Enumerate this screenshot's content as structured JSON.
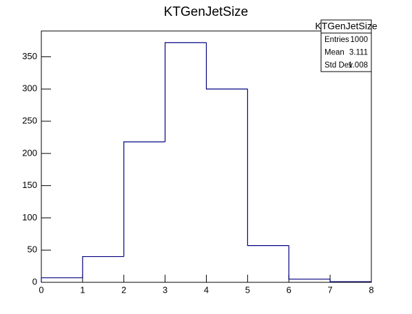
{
  "chart_data": {
    "type": "histogram",
    "title": "KTGenJetSize",
    "bins": [
      0,
      1,
      2,
      3,
      4,
      5,
      6,
      7,
      8
    ],
    "values": [
      7,
      40,
      218,
      372,
      300,
      57,
      5,
      1
    ],
    "color": "#000080",
    "xlim": [
      0,
      8
    ],
    "xticks": [
      0,
      1,
      2,
      3,
      4,
      5,
      6,
      7,
      8
    ],
    "ylim": [
      0,
      390
    ],
    "yticks": [
      0,
      50,
      100,
      150,
      200,
      250,
      300,
      350
    ],
    "stats": {
      "title": "KTGenJetSize",
      "rows": [
        {
          "label": "Entries",
          "value": 1000
        },
        {
          "label": "Mean",
          "value": 3.111
        },
        {
          "label": "Std Dev",
          "value": 1.008
        }
      ]
    }
  }
}
